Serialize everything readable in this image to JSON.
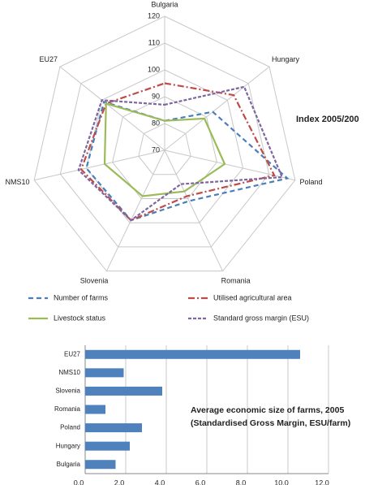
{
  "chart_data": [
    {
      "type": "radar",
      "title": "Index 2005/200",
      "categories": [
        "Bulgaria",
        "Hungary",
        "Poland",
        "Romania",
        "Slovenia",
        "NMS10",
        "EU27"
      ],
      "rlim": [
        70,
        120
      ],
      "rticks": [
        70,
        80,
        90,
        100,
        110,
        120
      ],
      "grid": true,
      "legend": "bottom",
      "series": [
        {
          "name": "Number of farms",
          "color": "#4a7ebb",
          "dash": "6 4",
          "values": [
            81,
            93,
            117,
            91,
            99,
            100,
            99
          ]
        },
        {
          "name": "Utilised agricultural area",
          "color": "#be4b48",
          "dash": "8 3 2 3",
          "values": [
            95,
            103,
            112,
            89,
            99,
            102,
            98
          ]
        },
        {
          "name": "Livestock status",
          "color": "#9bbb59",
          "dash": "none",
          "values": [
            81,
            89,
            93,
            87,
            89,
            93,
            98
          ]
        },
        {
          "name": "Standard gross margin (ESU)",
          "color": "#7e64a0",
          "dash": "4 2",
          "values": [
            87,
            108,
            115,
            84,
            99,
            103,
            100
          ]
        }
      ]
    },
    {
      "type": "bar",
      "orientation": "horizontal",
      "annotations": [
        "Average economic size of farms, 2005",
        "(Standardised Gross Margin, ESU/farm)"
      ],
      "categories": [
        "EU27",
        "NMS10",
        "Slovenia",
        "Romania",
        "Poland",
        "Hungary",
        "Bulgaria"
      ],
      "values": [
        10.6,
        1.9,
        3.8,
        1.0,
        2.8,
        2.2,
        1.5
      ],
      "color": "#4f81bd",
      "xlim": [
        0,
        12
      ],
      "xticks": [
        {
          "value": 0,
          "label": "0,0"
        },
        {
          "value": 2,
          "label": "2,0"
        },
        {
          "value": 4,
          "label": "4,0"
        },
        {
          "value": 6,
          "label": "6,0"
        },
        {
          "value": 8,
          "label": "8,0"
        },
        {
          "value": 10,
          "label": "10,0"
        },
        {
          "value": 12,
          "label": "12,0"
        }
      ],
      "grid": true
    }
  ]
}
